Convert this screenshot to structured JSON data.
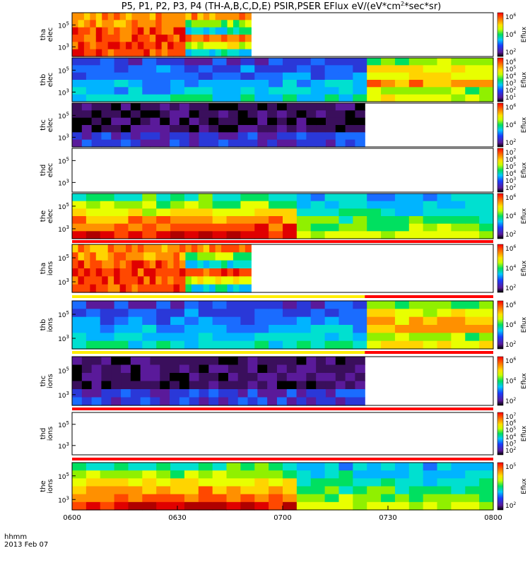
{
  "chart_data": {
    "type": "heatmap",
    "title": "P5, P1, P2, P3, P4 (TH-A,B,C,D,E) PSIR,PSER EFlux eV/(eV*cm",
    "title_sup": "2",
    "title_end": "*sec*sr)",
    "x_ticks": [
      "0600",
      "0630",
      "0700",
      "0730",
      "0800"
    ],
    "x_range": [
      "06:00",
      "08:00"
    ],
    "footer_label": "hhmm",
    "footer_date": "2013 Feb 07",
    "colorbar_label": "Eflux",
    "panels": [
      {
        "probe": "tha",
        "species": "elec",
        "yticks": [
          "10",
          "10"
        ],
        "yexp": [
          "5",
          "3"
        ],
        "cb_ticks": [
          "10",
          "10",
          "10"
        ],
        "cb_exp": [
          "6",
          "4",
          "2"
        ],
        "data_end": 0.425
      },
      {
        "probe": "thb",
        "species": "elec",
        "yticks": [
          "10",
          "10"
        ],
        "yexp": [
          "5",
          "3"
        ],
        "cb_ticks": [
          "10",
          "10",
          "10",
          "10",
          "10",
          "10"
        ],
        "cb_exp": [
          "6",
          "5",
          "4",
          "3",
          "2",
          "1"
        ],
        "data_end": 1.0
      },
      {
        "probe": "thc",
        "species": "elec",
        "yticks": [
          "10",
          "10"
        ],
        "yexp": [
          "5",
          "3"
        ],
        "cb_ticks": [
          "10",
          "10",
          "10"
        ],
        "cb_exp": [
          "6",
          "4",
          "2"
        ],
        "data_end": 0.695
      },
      {
        "probe": "thd",
        "species": "elec",
        "yticks": [
          "10",
          "10"
        ],
        "yexp": [
          "5",
          "3"
        ],
        "cb_ticks": [
          "10",
          "10",
          "10",
          "10",
          "10",
          "10"
        ],
        "cb_exp": [
          "7",
          "6",
          "5",
          "4",
          "3",
          "2"
        ],
        "data_end": 0.0
      },
      {
        "probe": "the",
        "species": "elec",
        "yticks": [
          "10",
          "10"
        ],
        "yexp": [
          "5",
          "3"
        ],
        "cb_ticks": [
          "10",
          "10",
          "10"
        ],
        "cb_exp": [
          "6",
          "4",
          "2"
        ],
        "data_end": 1.0
      },
      {
        "probe": "tha",
        "species": "ions",
        "yticks": [
          "10",
          "10"
        ],
        "yexp": [
          "5",
          "3"
        ],
        "cb_ticks": [
          "10",
          "10",
          "10"
        ],
        "cb_exp": [
          "6",
          "4",
          "2"
        ],
        "data_end": 0.425
      },
      {
        "probe": "thb",
        "species": "ions",
        "yticks": [
          "10",
          "10"
        ],
        "yexp": [
          "5",
          "3"
        ],
        "cb_ticks": [
          "10",
          "10",
          "10"
        ],
        "cb_exp": [
          "6",
          "4",
          "2"
        ],
        "data_end": 1.0
      },
      {
        "probe": "thc",
        "species": "ions",
        "yticks": [
          "10",
          "10"
        ],
        "yexp": [
          "5",
          "3"
        ],
        "cb_ticks": [
          "10",
          "10",
          "10"
        ],
        "cb_exp": [
          "6",
          "4",
          "2"
        ],
        "data_end": 0.695
      },
      {
        "probe": "thd",
        "species": "ions",
        "yticks": [
          "10",
          "10"
        ],
        "yexp": [
          "5",
          "3"
        ],
        "cb_ticks": [
          "10",
          "10",
          "10",
          "10",
          "10",
          "10"
        ],
        "cb_exp": [
          "7",
          "6",
          "5",
          "4",
          "3",
          "2"
        ],
        "data_end": 0.0
      },
      {
        "probe": "the",
        "species": "ions",
        "yticks": [
          "10",
          "10"
        ],
        "yexp": [
          "5",
          "3"
        ],
        "cb_ticks": [
          "10",
          "10"
        ],
        "cb_exp": [
          "5",
          "2"
        ],
        "data_end": 1.0
      }
    ]
  }
}
